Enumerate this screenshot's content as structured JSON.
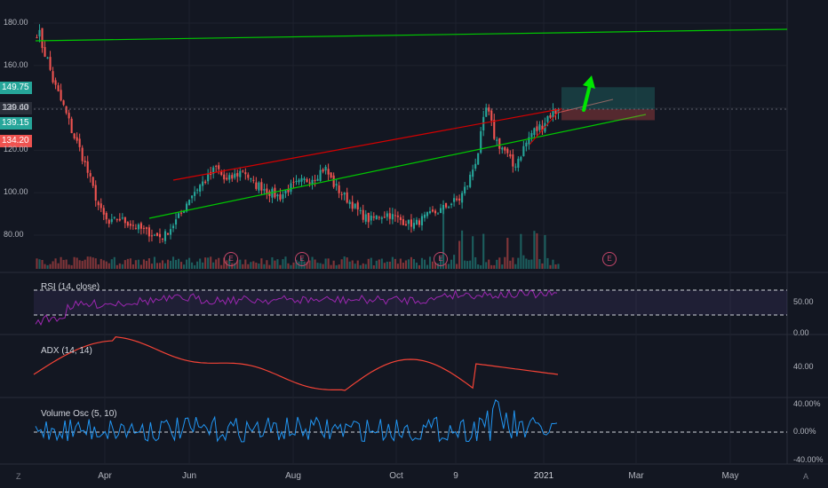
{
  "price_tags": [
    {
      "value": "149.75",
      "color": "#26a69a"
    },
    {
      "value": "139.40",
      "color": "#2a2e39"
    },
    {
      "value": "139.15",
      "color": "#26a69a"
    },
    {
      "value": "134.20",
      "color": "#ef5350"
    }
  ],
  "time_labels": [
    "Apr",
    "Jun",
    "Aug",
    "Oct",
    "9",
    "2021",
    "Mar",
    "May"
  ],
  "earnings_marker": "E",
  "rsi": {
    "label": "RSI (14, close)",
    "axis": [
      "50.00",
      "0.00"
    ]
  },
  "adx": {
    "label": "ADX (14, 14)",
    "axis": [
      "40.00"
    ]
  },
  "volosc": {
    "label": "Volume Osc (5, 10)",
    "axis": [
      "40.00%",
      "0.00%",
      "-40.00%"
    ]
  },
  "icons": {
    "left": "Z",
    "right": "A"
  },
  "colors": {
    "up": "#26a69a",
    "down": "#ef5350",
    "rsi": "#9c27b0",
    "adx": "#f44336",
    "volosc": "#2196f3",
    "trend_green": "#00c800",
    "trend_red": "#d50000"
  },
  "chart_data": [
    {
      "type": "candlestick",
      "ylim": [
        65,
        183
      ],
      "yticks": [
        80,
        100,
        120,
        140,
        160,
        180
      ],
      "ytick_labels": [
        "80.00",
        "100.00",
        "120.00",
        "140.00",
        "160.00",
        "180.00"
      ],
      "x_ticks": [
        "Apr",
        "Jun",
        "Aug",
        "Oct",
        "9",
        "2021",
        "Mar",
        "May"
      ],
      "closes_sample": [
        177,
        165,
        150,
        140,
        128,
        118,
        105,
        92,
        85,
        88,
        86,
        84,
        82,
        80,
        79,
        84,
        90,
        98,
        103,
        107,
        112,
        105,
        108,
        111,
        104,
        103,
        100,
        98,
        102,
        104,
        106,
        108,
        112,
        104,
        99,
        95,
        90,
        87,
        89,
        90,
        88,
        86,
        85,
        88,
        90,
        92,
        95,
        97,
        105,
        118,
        140,
        125,
        120,
        112,
        120,
        128,
        131,
        137,
        139.15
      ],
      "trend_lines": [
        "upper green long",
        "red resistance",
        "green support"
      ],
      "current_price": 139.15,
      "target_zone": [
        139.4,
        149.75
      ],
      "stop_zone": [
        134.2,
        139.4
      ]
    },
    {
      "type": "line",
      "name": "RSI",
      "ylim": [
        0,
        100
      ],
      "bands": [
        30,
        70
      ],
      "range": "approx 35-70"
    },
    {
      "type": "line",
      "name": "ADX",
      "range": "approx 15-60"
    },
    {
      "type": "line",
      "name": "Volume Osc",
      "ylim": [
        -40,
        40
      ],
      "zero_line": 0
    }
  ]
}
